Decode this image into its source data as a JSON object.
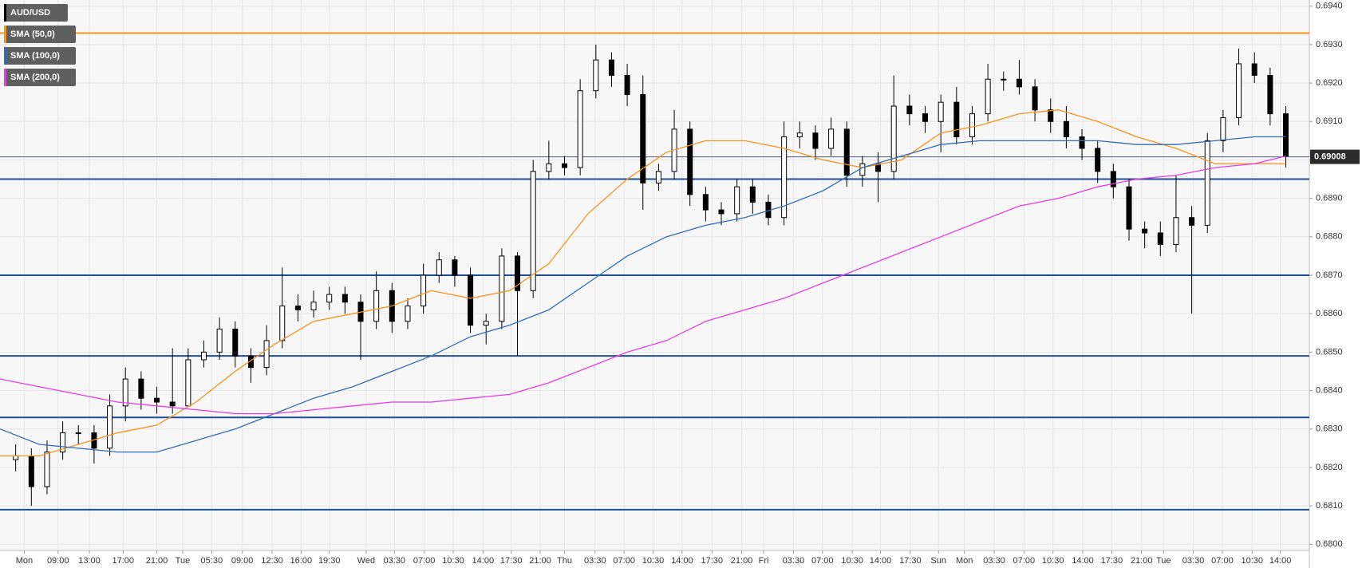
{
  "chart_data": {
    "type": "candlestick",
    "candles": {
      "name": "AUD/USD",
      "up_color": "#ffffff",
      "down_color": "#000000",
      "x": [
        2,
        4,
        6,
        8,
        10,
        12,
        14,
        16,
        18,
        20,
        22,
        24,
        26,
        28,
        30,
        32,
        34,
        36,
        38,
        40,
        42,
        44,
        46,
        48,
        50,
        52,
        54,
        56,
        58,
        60,
        62,
        64,
        66,
        68,
        70,
        72,
        74,
        76,
        78,
        80,
        82,
        84,
        86,
        88,
        90,
        92,
        94,
        96,
        98,
        100,
        102,
        104,
        106,
        108,
        110,
        112,
        114,
        116,
        118,
        120,
        122,
        124,
        126,
        128,
        130,
        132,
        134,
        136,
        138,
        140,
        142,
        144,
        146,
        148,
        150,
        152,
        154,
        156,
        158,
        160,
        162,
        164
      ],
      "open": [
        0.6822,
        0.6823,
        0.6815,
        0.6824,
        0.6829,
        0.6829,
        0.6825,
        0.6836,
        0.6843,
        0.6838,
        0.6837,
        0.6836,
        0.6848,
        0.685,
        0.6856,
        0.6849,
        0.6846,
        0.6853,
        0.6862,
        0.6861,
        0.6863,
        0.6865,
        0.6863,
        0.6858,
        0.6866,
        0.6858,
        0.6862,
        0.687,
        0.6874,
        0.687,
        0.6857,
        0.6858,
        0.6875,
        0.6866,
        0.6897,
        0.6899,
        0.6898,
        0.6918,
        0.6926,
        0.6922,
        0.6917,
        0.6894,
        0.6897,
        0.6908,
        0.6891,
        0.6887,
        0.6886,
        0.6893,
        0.6889,
        0.6885,
        0.6906,
        0.6907,
        0.6903,
        0.6908,
        0.6896,
        0.6899,
        0.6897,
        0.6914,
        0.6912,
        0.691,
        0.6915,
        0.6906,
        0.6912,
        0.6921,
        0.6921,
        0.6919,
        0.6913,
        0.691,
        0.6906,
        0.6903,
        0.6897,
        0.6893,
        0.6882,
        0.6881,
        0.6878,
        0.6885,
        0.6883,
        0.6905,
        0.6911,
        0.6925,
        0.6922,
        0.6912
      ],
      "high": [
        0.6826,
        0.6825,
        0.6827,
        0.6832,
        0.6831,
        0.6831,
        0.6839,
        0.6846,
        0.6845,
        0.6841,
        0.6851,
        0.6851,
        0.6853,
        0.6859,
        0.6858,
        0.6851,
        0.6857,
        0.6872,
        0.6865,
        0.6866,
        0.6867,
        0.6867,
        0.6865,
        0.6871,
        0.6868,
        0.6864,
        0.6873,
        0.6876,
        0.6875,
        0.6872,
        0.686,
        0.6877,
        0.6876,
        0.69,
        0.6905,
        0.6901,
        0.6921,
        0.693,
        0.6928,
        0.6925,
        0.6922,
        0.6899,
        0.6913,
        0.691,
        0.6893,
        0.6889,
        0.6895,
        0.6895,
        0.6891,
        0.691,
        0.691,
        0.6909,
        0.6911,
        0.691,
        0.6901,
        0.6902,
        0.6922,
        0.6917,
        0.6914,
        0.6917,
        0.6919,
        0.6914,
        0.6925,
        0.6923,
        0.6926,
        0.6921,
        0.6916,
        0.6914,
        0.6908,
        0.6905,
        0.6899,
        0.6895,
        0.6884,
        0.6884,
        0.6896,
        0.6888,
        0.6907,
        0.6913,
        0.6929,
        0.6928,
        0.6924,
        0.6914
      ],
      "low": [
        0.6819,
        0.681,
        0.6813,
        0.6822,
        0.6826,
        0.6821,
        0.6823,
        0.6832,
        0.6835,
        0.6834,
        0.6834,
        0.6843,
        0.6846,
        0.6848,
        0.6846,
        0.6842,
        0.6844,
        0.6851,
        0.6858,
        0.6859,
        0.6861,
        0.686,
        0.6848,
        0.6856,
        0.6855,
        0.6856,
        0.686,
        0.6868,
        0.6867,
        0.6855,
        0.6852,
        0.6856,
        0.6849,
        0.6864,
        0.6895,
        0.6896,
        0.6896,
        0.6916,
        0.6919,
        0.6914,
        0.6887,
        0.6892,
        0.6895,
        0.6888,
        0.6884,
        0.6883,
        0.6884,
        0.6886,
        0.6883,
        0.6883,
        0.6903,
        0.69,
        0.6901,
        0.6893,
        0.6893,
        0.6889,
        0.6895,
        0.6909,
        0.6907,
        0.6902,
        0.6904,
        0.6904,
        0.691,
        0.6918,
        0.6917,
        0.691,
        0.6907,
        0.6903,
        0.69,
        0.6894,
        0.689,
        0.6879,
        0.6877,
        0.6875,
        0.6876,
        0.686,
        0.6881,
        0.6902,
        0.6909,
        0.692,
        0.6909,
        0.6898
      ],
      "close": [
        0.6823,
        0.6815,
        0.6824,
        0.6829,
        0.6829,
        0.6825,
        0.6836,
        0.6843,
        0.6838,
        0.6837,
        0.6836,
        0.6848,
        0.685,
        0.6856,
        0.6849,
        0.6846,
        0.6853,
        0.6862,
        0.6861,
        0.6863,
        0.6865,
        0.6863,
        0.6858,
        0.6866,
        0.6858,
        0.6862,
        0.687,
        0.6874,
        0.687,
        0.6857,
        0.6858,
        0.6875,
        0.6866,
        0.6897,
        0.6899,
        0.6898,
        0.6918,
        0.6926,
        0.6922,
        0.6917,
        0.6894,
        0.6897,
        0.6908,
        0.6891,
        0.6887,
        0.6886,
        0.6893,
        0.6889,
        0.6885,
        0.6906,
        0.6907,
        0.6903,
        0.6908,
        0.6896,
        0.6899,
        0.6897,
        0.6914,
        0.6912,
        0.691,
        0.6915,
        0.6906,
        0.6912,
        0.6921,
        0.6921,
        0.6919,
        0.6913,
        0.691,
        0.6906,
        0.6903,
        0.6897,
        0.6893,
        0.6882,
        0.6881,
        0.6878,
        0.6885,
        0.6883,
        0.6905,
        0.6911,
        0.6925,
        0.6922,
        0.6912,
        0.6901
      ]
    },
    "sma_x": [
      0,
      5,
      10,
      15,
      20,
      25,
      30,
      35,
      40,
      45,
      50,
      55,
      60,
      65,
      70,
      75,
      80,
      85,
      90,
      95,
      100,
      105,
      110,
      115,
      120,
      125,
      130,
      135,
      140,
      145,
      150,
      155,
      160,
      164
    ],
    "series": [
      {
        "name": "SMA (50,0)",
        "color": "#f7931e",
        "values": [
          0.6823,
          0.6823,
          0.6826,
          0.6829,
          0.6831,
          0.6837,
          0.6845,
          0.6852,
          0.6858,
          0.686,
          0.6862,
          0.6866,
          0.6864,
          0.6866,
          0.6873,
          0.6886,
          0.6895,
          0.6902,
          0.6905,
          0.6905,
          0.6903,
          0.69,
          0.6898,
          0.69,
          0.6907,
          0.6909,
          0.6912,
          0.6913,
          0.691,
          0.6906,
          0.6903,
          0.6899,
          0.6899,
          0.6899
        ]
      },
      {
        "name": "SMA (100,0)",
        "color": "#2f6db5",
        "values": [
          0.683,
          0.6826,
          0.6825,
          0.6824,
          0.6824,
          0.6827,
          0.683,
          0.6834,
          0.6838,
          0.6841,
          0.6845,
          0.6849,
          0.6854,
          0.6857,
          0.6861,
          0.6868,
          0.6875,
          0.688,
          0.6883,
          0.6885,
          0.6888,
          0.6892,
          0.6898,
          0.6901,
          0.6904,
          0.6905,
          0.6905,
          0.6905,
          0.6905,
          0.6904,
          0.6904,
          0.6905,
          0.6906,
          0.6906
        ]
      },
      {
        "name": "SMA (200,0)",
        "color": "#e63de6",
        "values": [
          0.6843,
          0.6841,
          0.6839,
          0.6837,
          0.6836,
          0.6835,
          0.6834,
          0.6834,
          0.6835,
          0.6836,
          0.6837,
          0.6837,
          0.6838,
          0.6839,
          0.6842,
          0.6846,
          0.685,
          0.6853,
          0.6858,
          0.6861,
          0.6864,
          0.6868,
          0.6872,
          0.6876,
          0.688,
          0.6884,
          0.6888,
          0.689,
          0.6893,
          0.6895,
          0.6896,
          0.6898,
          0.6899,
          0.6901
        ]
      }
    ],
    "levels": [
      {
        "value": 0.6933,
        "color": "#f7931e"
      },
      {
        "value": 0.6895,
        "color": "#1f4e96"
      },
      {
        "value": 0.687,
        "color": "#1f4e96"
      },
      {
        "value": 0.6849,
        "color": "#1f4e96"
      },
      {
        "value": 0.6833,
        "color": "#1f4e96"
      },
      {
        "value": 0.6809,
        "color": "#1f4e96"
      }
    ],
    "current_price": 0.69008,
    "xlim": [
      0,
      167
    ],
    "ylim": [
      0.67984,
      0.69416
    ],
    "grid": true,
    "xticks": [
      {
        "value": 3.1,
        "label": "Mon"
      },
      {
        "value": 7.4,
        "label": "09:00"
      },
      {
        "value": 11.4,
        "label": "13:00"
      },
      {
        "value": 15.7,
        "label": "17:00"
      },
      {
        "value": 20,
        "label": "21:00"
      },
      {
        "value": 23.3,
        "label": "Tue"
      },
      {
        "value": 27,
        "label": "05:30"
      },
      {
        "value": 30.9,
        "label": "09:00"
      },
      {
        "value": 34.7,
        "label": "12:30"
      },
      {
        "value": 38.4,
        "label": "16:00"
      },
      {
        "value": 42,
        "label": "19:30"
      },
      {
        "value": 46.7,
        "label": "Wed"
      },
      {
        "value": 50.3,
        "label": "03:30"
      },
      {
        "value": 54.1,
        "label": "07:00"
      },
      {
        "value": 57.8,
        "label": "10:30"
      },
      {
        "value": 61.6,
        "label": "14:00"
      },
      {
        "value": 65.2,
        "label": "17:30"
      },
      {
        "value": 68.9,
        "label": "21:00"
      },
      {
        "value": 72,
        "label": "Thu"
      },
      {
        "value": 75.9,
        "label": "03:30"
      },
      {
        "value": 79.6,
        "label": "07:00"
      },
      {
        "value": 83.3,
        "label": "10:30"
      },
      {
        "value": 87,
        "label": "14:00"
      },
      {
        "value": 90.8,
        "label": "17:30"
      },
      {
        "value": 94.6,
        "label": "21:00"
      },
      {
        "value": 97.4,
        "label": "Fri"
      },
      {
        "value": 101.2,
        "label": "03:30"
      },
      {
        "value": 104.9,
        "label": "07:00"
      },
      {
        "value": 108.7,
        "label": "10:30"
      },
      {
        "value": 112.3,
        "label": "14:00"
      },
      {
        "value": 116.1,
        "label": "17:30"
      },
      {
        "value": 119.7,
        "label": "Sun"
      },
      {
        "value": 123,
        "label": "Mon"
      },
      {
        "value": 126.8,
        "label": "03:30"
      },
      {
        "value": 130.6,
        "label": "07:00"
      },
      {
        "value": 134.3,
        "label": "10:30"
      },
      {
        "value": 138.1,
        "label": "14:00"
      },
      {
        "value": 141.8,
        "label": "17:30"
      },
      {
        "value": 145.6,
        "label": "21:00"
      },
      {
        "value": 148.4,
        "label": "Tue"
      },
      {
        "value": 152.2,
        "label": "03:30"
      },
      {
        "value": 155.9,
        "label": "07:00"
      },
      {
        "value": 159.7,
        "label": "10:30"
      },
      {
        "value": 163.3,
        "label": "14:00"
      }
    ],
    "yticks": [
      {
        "value": 0.68,
        "label": "0.6800"
      },
      {
        "value": 0.681,
        "label": "0.6810"
      },
      {
        "value": 0.682,
        "label": "0.6820"
      },
      {
        "value": 0.683,
        "label": "0.6830"
      },
      {
        "value": 0.684,
        "label": "0.6840"
      },
      {
        "value": 0.685,
        "label": "0.6850"
      },
      {
        "value": 0.686,
        "label": "0.6860"
      },
      {
        "value": 0.687,
        "label": "0.6870"
      },
      {
        "value": 0.688,
        "label": "0.6880"
      },
      {
        "value": 0.689,
        "label": "0.6890"
      },
      {
        "value": 0.69,
        "label": "0.6900"
      },
      {
        "value": 0.691,
        "label": "0.6910"
      },
      {
        "value": 0.692,
        "label": "0.6920"
      },
      {
        "value": 0.693,
        "label": "0.6930"
      },
      {
        "value": 0.694,
        "label": "0.6940"
      }
    ]
  }
}
